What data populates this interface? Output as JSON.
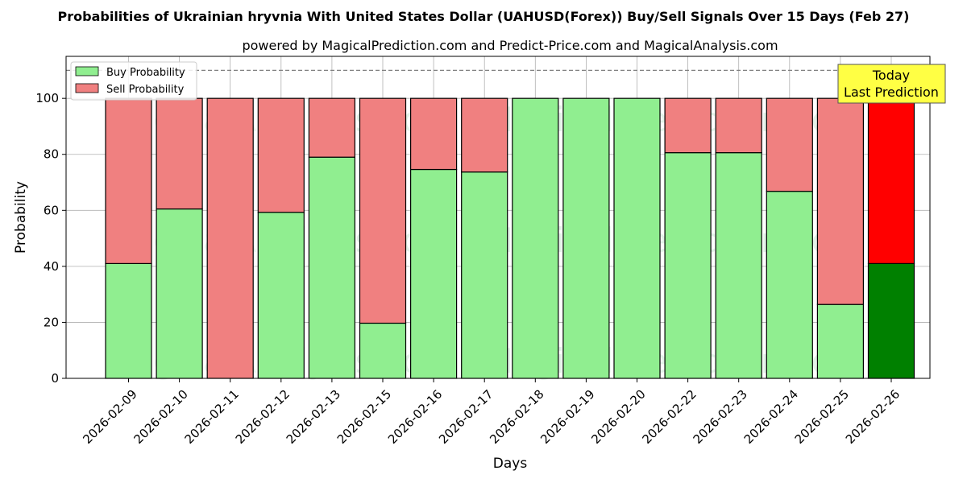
{
  "chart_data": {
    "type": "bar",
    "stacked": true,
    "title": "Probabilities of Ukrainian hryvnia With United States Dollar (UAHUSD(Forex)) Buy/Sell Signals Over 15 Days (Feb 27)",
    "subtitle": "powered by MagicalPrediction.com and Predict-Price.com and MagicalAnalysis.com",
    "xlabel": "Days",
    "ylabel": "Probability",
    "ylim": [
      0,
      115
    ],
    "yticks": [
      0,
      20,
      40,
      60,
      80,
      100
    ],
    "threshold_line": 110,
    "grid": true,
    "legend_position": "top-left",
    "categories": [
      "2026-02-09",
      "2026-02-10",
      "2026-02-11",
      "2026-02-12",
      "2026-02-13",
      "2026-02-15",
      "2026-02-16",
      "2026-02-17",
      "2026-02-18",
      "2026-02-19",
      "2026-02-20",
      "2026-02-22",
      "2026-02-23",
      "2026-02-24",
      "2026-02-25",
      "2026-02-26"
    ],
    "series": [
      {
        "name": "Buy Probability",
        "color": "#90ee90",
        "highlight_color": "#008000",
        "values": [
          41,
          60.5,
          0,
          59.3,
          79,
          19.7,
          74.6,
          73.7,
          100,
          100,
          100,
          80.6,
          80.6,
          66.8,
          26.4,
          41
        ]
      },
      {
        "name": "Sell Probability",
        "color": "#f08080",
        "highlight_color": "#ff0000",
        "values": [
          59,
          39.5,
          100,
          40.7,
          21,
          80.3,
          25.4,
          26.3,
          0,
          0,
          0,
          19.4,
          19.4,
          33.2,
          73.6,
          59
        ]
      }
    ],
    "highlight_index": 15,
    "annotation": {
      "line1": "Today",
      "line2": "Last Prediction",
      "bg": "#ffff44"
    },
    "watermarks": [
      "MagicalAnalysis.com",
      "MagicalPrediction.com"
    ]
  }
}
